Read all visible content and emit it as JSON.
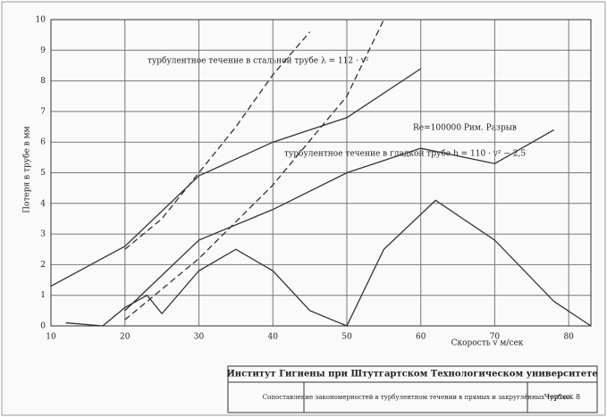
{
  "chart_data": {
    "type": "line",
    "y_label": "Потеря в трубе в мм",
    "x_label": "Скорость v м/сек",
    "annotations": [
      "турбулентное течение в стальной трубе λ = 112 · v²",
      "турбулентное течение в гладкой трубе h = 110 · v² − 2,5",
      "Re=100000 Рим. Разрыв"
    ],
    "xlim": [
      10,
      83
    ],
    "xticks": [
      10,
      20,
      30,
      40,
      50,
      60,
      70,
      80
    ],
    "ylim": [
      0,
      10
    ],
    "yticks": [
      0,
      1,
      2,
      3,
      4,
      5,
      6,
      7,
      8,
      9,
      10
    ],
    "grid": true,
    "series": [
      {
        "color": "#333333",
        "dash": false,
        "x": [
          10,
          20,
          30,
          40,
          50,
          60
        ],
        "values": [
          1.3,
          2.6,
          4.9,
          6.0,
          6.8,
          8.4
        ]
      },
      {
        "color": "#333333",
        "dash": true,
        "x": [
          20,
          25,
          30,
          35,
          40,
          45
        ],
        "values": [
          2.5,
          3.5,
          5.0,
          6.5,
          8.2,
          9.6
        ]
      },
      {
        "color": "#333333",
        "dash": true,
        "x": [
          20,
          30,
          40,
          50,
          55
        ],
        "values": [
          0.2,
          2.2,
          4.6,
          7.5,
          10
        ]
      },
      {
        "color": "#333333",
        "dash": false,
        "x": [
          20,
          30,
          40,
          50,
          60,
          70,
          78
        ],
        "values": [
          0.5,
          2.8,
          3.8,
          5.0,
          5.8,
          5.3,
          6.4
        ]
      },
      {
        "color": "#333333",
        "dash": false,
        "x": [
          12,
          17,
          20,
          23,
          25,
          30,
          35,
          40,
          45,
          50,
          55,
          62,
          70,
          78,
          83
        ],
        "values": [
          0.1,
          0.0,
          0.6,
          1.0,
          0.4,
          1.8,
          2.5,
          1.8,
          0.5,
          0.0,
          2.5,
          4.1,
          2.8,
          0.8,
          0.0
        ]
      }
    ]
  },
  "title_block": {
    "institute": "Институт Гигиены при Штутгартском Технологическом университете",
    "subject": "Сопоставление закономерностей в турбулентном течении в прямых и закруглённых трубах",
    "sheet": "Чертеж 8"
  }
}
